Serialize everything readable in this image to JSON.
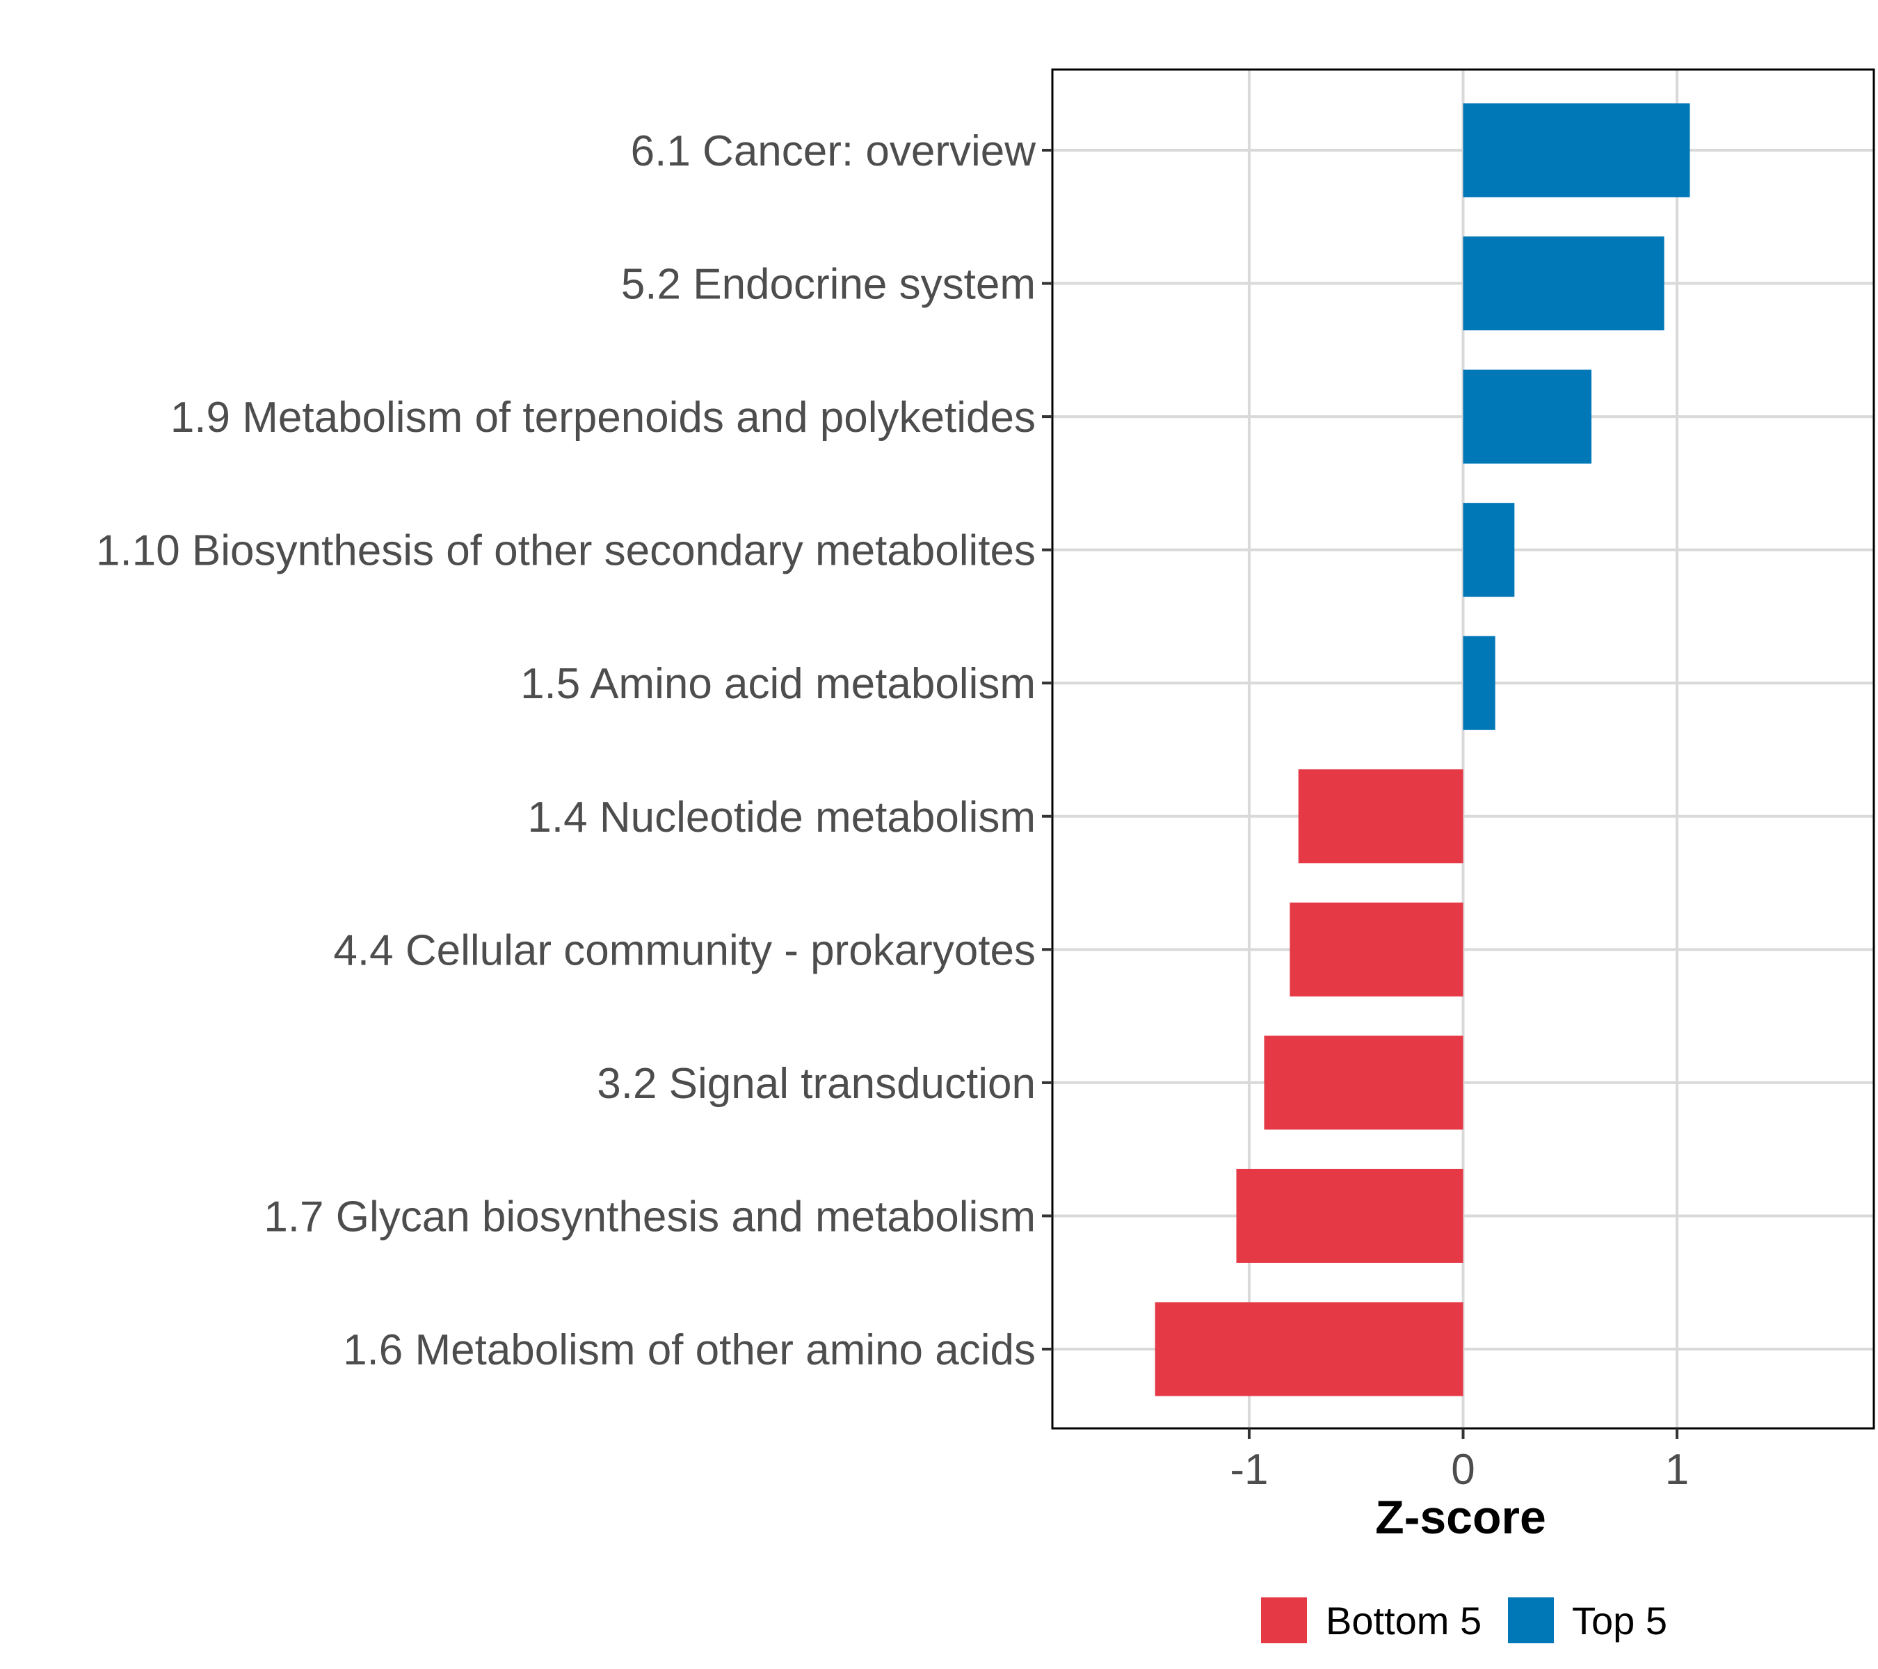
{
  "chart_data": {
    "type": "bar",
    "orientation": "horizontal",
    "title": "",
    "xlabel": "Z-score",
    "ylabel": "",
    "xlim": [
      -1.92,
      1.92
    ],
    "xticks": [
      -1,
      0,
      1
    ],
    "xtick_labels": [
      "-1",
      "0",
      "1"
    ],
    "grid": true,
    "categories": [
      "6.1 Cancer: overview",
      "5.2 Endocrine system",
      "1.9 Metabolism of terpenoids and polyketides",
      "1.10 Biosynthesis of other secondary metabolites",
      "1.5 Amino acid metabolism",
      "1.4 Nucleotide metabolism",
      "4.4 Cellular community - prokaryotes",
      "3.2 Signal transduction",
      "1.7 Glycan biosynthesis and metabolism",
      "1.6 Metabolism of other amino acids"
    ],
    "values": [
      1.06,
      0.94,
      0.6,
      0.24,
      0.15,
      -0.77,
      -0.81,
      -0.93,
      -1.06,
      -1.44
    ],
    "groups": [
      "Top 5",
      "Top 5",
      "Top 5",
      "Top 5",
      "Top 5",
      "Bottom 5",
      "Bottom 5",
      "Bottom 5",
      "Bottom 5",
      "Bottom 5"
    ],
    "legend": {
      "placement": "bottom",
      "entries": [
        {
          "label": "Bottom 5",
          "color": "#e63946"
        },
        {
          "label": "Top 5",
          "color": "#0077b6"
        }
      ]
    }
  }
}
